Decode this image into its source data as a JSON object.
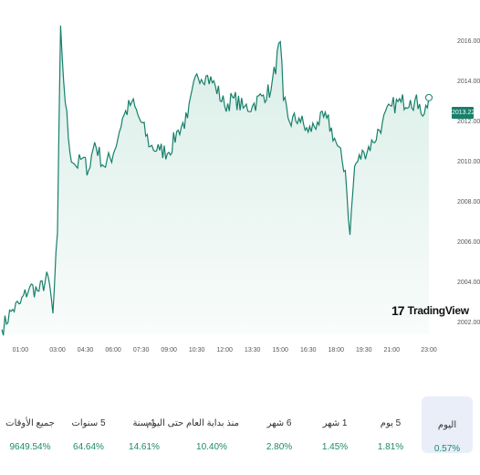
{
  "chart_data": {
    "type": "area",
    "title": "",
    "xlabel": "",
    "ylabel": "",
    "ylim": [
      2001.5,
      2016.8
    ],
    "yticks": [
      "2002.00",
      "2004.00",
      "2006.00",
      "2008.00",
      "2010.00",
      "2012.00",
      "2014.00",
      "2016.00"
    ],
    "xticks": [
      "01:00",
      "03:00",
      "04:30",
      "06:00",
      "07:30",
      "09:00",
      "10:30",
      "12:00",
      "13:30",
      "15:00",
      "16:30",
      "18:00",
      "19:30",
      "21:00",
      "23:00"
    ],
    "x": [
      "00:00",
      "00:30",
      "01:00",
      "01:30",
      "02:00",
      "02:30",
      "02:45",
      "03:00",
      "03:10",
      "03:20",
      "03:40",
      "04:00",
      "04:20",
      "04:40",
      "05:00",
      "05:30",
      "06:00",
      "06:30",
      "07:00",
      "07:30",
      "08:00",
      "08:30",
      "09:00",
      "09:30",
      "10:00",
      "10:30",
      "11:00",
      "11:30",
      "12:00",
      "12:30",
      "13:00",
      "13:30",
      "14:00",
      "14:30",
      "15:00",
      "15:10",
      "15:30",
      "16:00",
      "16:30",
      "17:00",
      "17:30",
      "18:00",
      "18:30",
      "18:45",
      "19:00",
      "19:30",
      "20:00",
      "20:30",
      "21:00",
      "21:30",
      "22:00",
      "22:30",
      "22:45",
      "23:00"
    ],
    "values": [
      2001.7,
      2002.6,
      2003.0,
      2003.8,
      2003.6,
      2004.3,
      2002.5,
      2006.5,
      2016.8,
      2014.0,
      2010.5,
      2009.8,
      2010.2,
      2009.6,
      2011.0,
      2009.8,
      2010.4,
      2012.2,
      2013.0,
      2012.0,
      2010.8,
      2010.6,
      2010.5,
      2011.6,
      2012.2,
      2014.4,
      2014.3,
      2013.8,
      2012.8,
      2013.2,
      2012.7,
      2012.8,
      2013.3,
      2013.6,
      2016.0,
      2013.1,
      2012.0,
      2012.2,
      2011.5,
      2012.0,
      2012.2,
      2011.0,
      2009.6,
      2006.4,
      2009.8,
      2010.5,
      2011.0,
      2012.0,
      2012.8,
      2013.0,
      2013.1,
      2012.9,
      2012.4,
      2013.22
    ],
    "last_value_label": "2013.22",
    "line_color": "#17806a",
    "fill_color": "#d4ebe4",
    "grid": false,
    "legend": "none"
  },
  "branding": {
    "logo_text": "TradingView",
    "logo_mark_icon": "tradingview-logo-icon"
  },
  "periods": [
    {
      "label": "جميع الأوقات",
      "value": "9649.54%"
    },
    {
      "label": "5 سنوات",
      "value": "64.64%"
    },
    {
      "label": "1 سنة",
      "value": "14.61%"
    },
    {
      "label": "منذ بداية العام حتى اليوم",
      "value": "10.40%"
    },
    {
      "label": "6 شهر",
      "value": "2.80%"
    },
    {
      "label": "1 شهر",
      "value": "1.45%"
    },
    {
      "label": "5 يوم",
      "value": "1.81%"
    },
    {
      "label": "اليوم",
      "value": "0.57%",
      "selected": true
    }
  ],
  "colors": {
    "accent": "#17806a",
    "positive": "#1a8b6b",
    "selected_bg": "#e9eef9"
  }
}
